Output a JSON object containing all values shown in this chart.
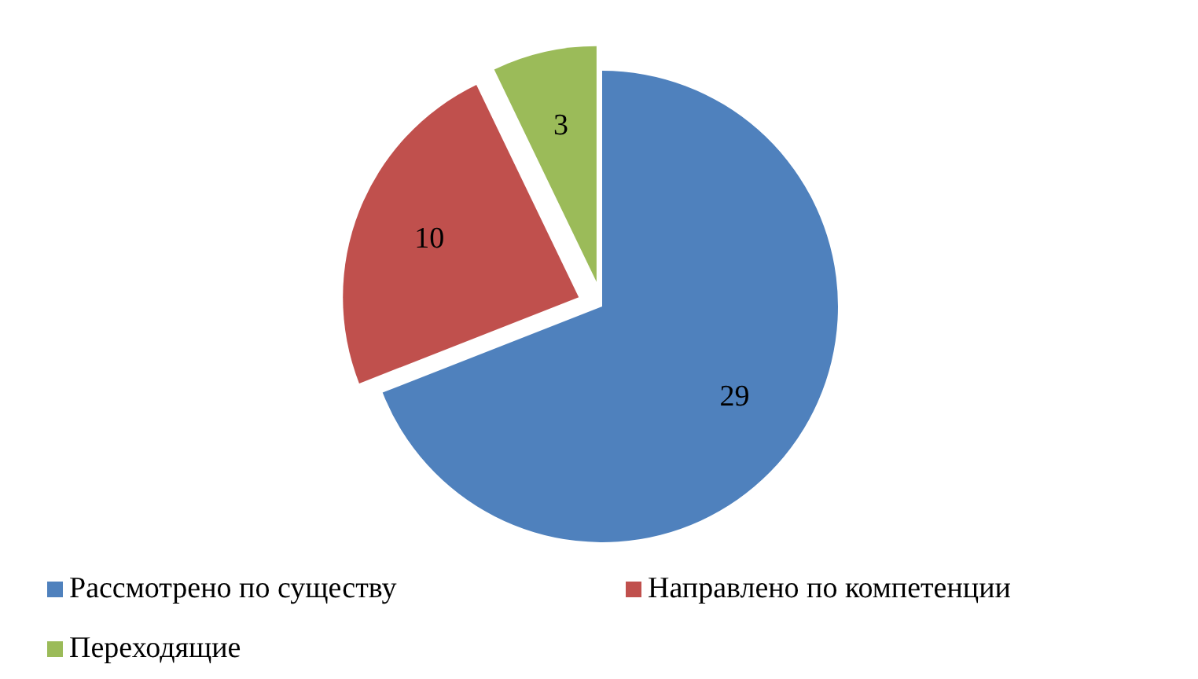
{
  "chart_data": {
    "type": "pie",
    "categories": [
      "Рассмотрено по существу",
      "Направлено по компетенции",
      "Переходящие"
    ],
    "values": [
      29,
      10,
      3
    ],
    "colors": [
      "#4f81bd",
      "#c0504d",
      "#9bbb59"
    ],
    "data_labels": true,
    "legend": "bottom"
  }
}
